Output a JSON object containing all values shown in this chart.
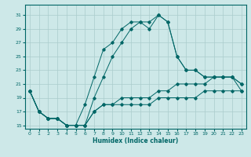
{
  "xlabel": "Humidex (Indice chaleur)",
  "ylabel": "",
  "background_color": "#cde8e8",
  "grid_color": "#aacccc",
  "line_color": "#006666",
  "xlim": [
    -0.5,
    23.5
  ],
  "ylim": [
    14.5,
    32.5
  ],
  "xticks": [
    0,
    1,
    2,
    3,
    4,
    5,
    6,
    7,
    8,
    9,
    10,
    11,
    12,
    13,
    14,
    15,
    16,
    17,
    18,
    19,
    20,
    21,
    22,
    23
  ],
  "yticks": [
    15,
    17,
    19,
    21,
    23,
    25,
    27,
    29,
    31
  ],
  "series": [
    [
      20,
      17,
      16,
      16,
      15,
      15,
      15,
      17,
      18,
      18,
      18,
      18,
      18,
      18,
      19,
      19,
      19,
      19,
      19,
      20,
      20,
      20,
      20,
      20
    ],
    [
      20,
      17,
      16,
      16,
      15,
      15,
      15,
      17,
      18,
      18,
      19,
      19,
      19,
      19,
      20,
      20,
      21,
      21,
      21,
      21,
      22,
      22,
      22,
      20
    ],
    [
      20,
      17,
      16,
      16,
      15,
      15,
      18,
      22,
      26,
      27,
      29,
      30,
      30,
      29,
      31,
      30,
      25,
      23,
      23,
      22,
      22,
      22,
      22,
      21
    ],
    [
      20,
      17,
      16,
      16,
      15,
      15,
      15,
      19,
      22,
      25,
      27,
      29,
      30,
      30,
      31,
      30,
      25,
      23,
      23,
      22,
      22,
      22,
      22,
      21
    ]
  ]
}
